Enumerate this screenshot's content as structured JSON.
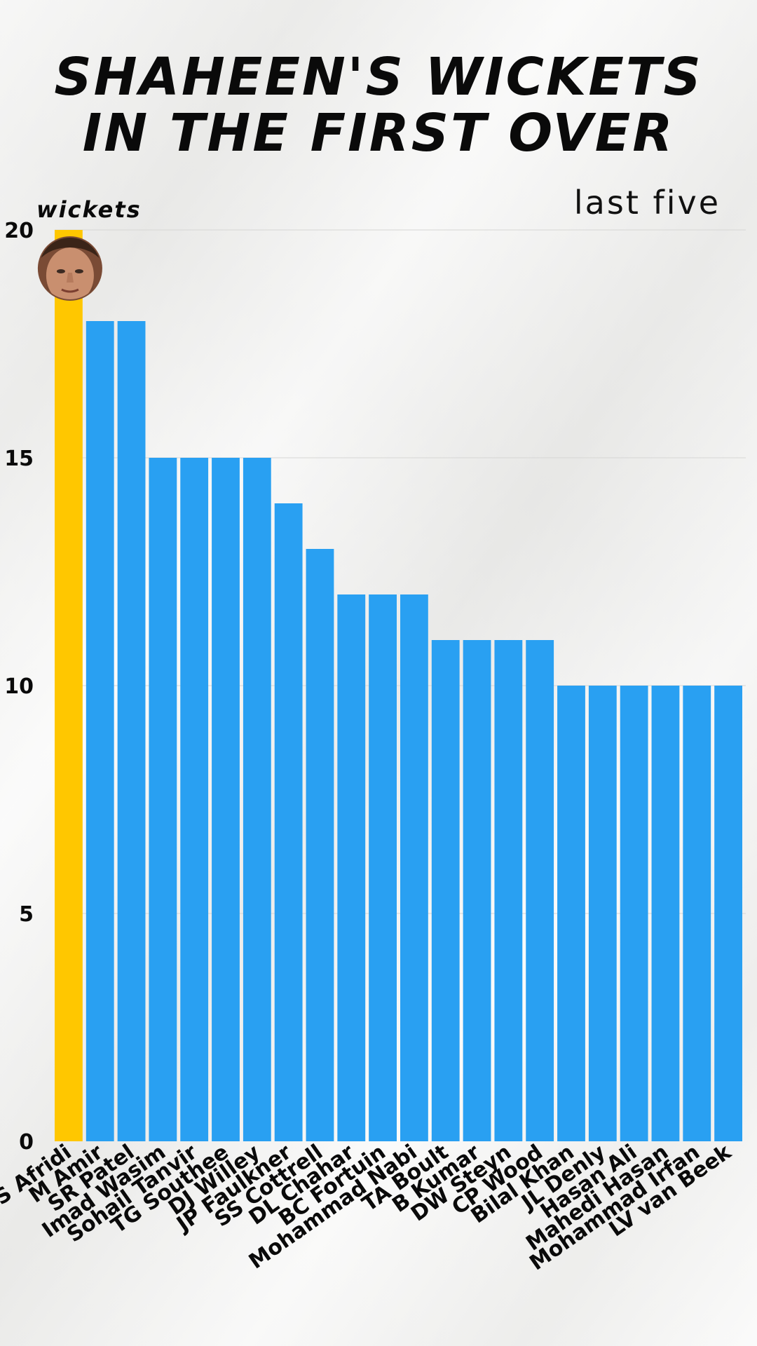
{
  "title_line1": "SHAHEEN'S WICKETS",
  "title_line2": "IN THE FIRST OVER",
  "subtitle": "last five",
  "colors": {
    "highlight": "#ffc700",
    "bar": "#29a0f2",
    "text": "#0a0a0a",
    "grid": "#d6d6d4"
  },
  "chart_data": {
    "type": "bar",
    "ylabel": "wickets",
    "ylim": [
      0,
      20
    ],
    "yticks": [
      0,
      5,
      10,
      15,
      20
    ],
    "grid": true,
    "highlight_category": "S Afridi",
    "highlight_icon": "player-headshot-icon",
    "categories": [
      "S Afridi",
      "M Amir",
      "SR Patel",
      "Imad Wasim",
      "Sohail Tanvir",
      "TG Southee",
      "DJ Willey",
      "JP Faulkner",
      "SS Cottrell",
      "DL Chahar",
      "BC Fortuin",
      "Mohammad Nabi",
      "TA Boult",
      "B Kumar",
      "DW Steyn",
      "CP Wood",
      "Bilal Khan",
      "JL Denly",
      "Hasan Ali",
      "Mahedi Hasan",
      "Mohammad Irfan",
      "LV van Beek"
    ],
    "values": [
      20,
      18,
      18,
      15,
      15,
      15,
      15,
      14,
      13,
      12,
      12,
      12,
      11,
      11,
      11,
      11,
      10,
      10,
      10,
      10,
      10,
      10
    ]
  }
}
